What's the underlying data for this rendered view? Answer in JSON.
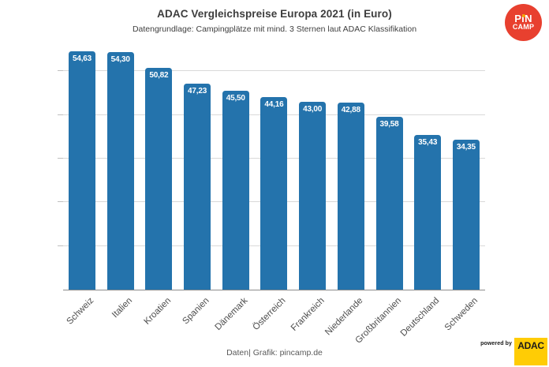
{
  "header": {
    "title": "ADAC Vergleichspreise Europa 2021 (in Euro)",
    "subtitle": "Datengrundlage: Campingplätze mit mind. 3 Sternen laut ADAC Klassifikation"
  },
  "chart_data": {
    "type": "bar",
    "title": "ADAC Vergleichspreise Europa 2021 (in Euro)",
    "subtitle": "Datengrundlage: Campingplätze mit mind. 3 Sternen laut ADAC Klassifikation",
    "categories": [
      "Schweiz",
      "Italien",
      "Kroatien",
      "Spanien",
      "Dänemark",
      "Österreich",
      "Frankreich",
      "Niederlande",
      "Großbritannien",
      "Deutschland",
      "Schweden"
    ],
    "values": [
      54.63,
      54.3,
      50.82,
      47.23,
      45.5,
      44.16,
      43.0,
      42.88,
      39.58,
      35.43,
      34.35
    ],
    "value_labels": [
      "54,63",
      "54,30",
      "50,82",
      "47,23",
      "45,50",
      "44,16",
      "43,00",
      "42,88",
      "39,58",
      "35,43",
      "34,35"
    ],
    "xlabel": "",
    "ylabel": "",
    "ylim": [
      0,
      56
    ],
    "gridline_values": [
      10,
      20,
      30,
      40,
      50
    ],
    "grid": "horizontal",
    "legend": "none",
    "bar_color": "#2473ac",
    "value_label_color": "#ffffff"
  },
  "footer": {
    "credit": "Daten| Grafik: pincamp.de"
  },
  "logos": {
    "pincamp": {
      "line1": "PiN",
      "line2": "CAMP",
      "circle_color": "#e8402f",
      "dot_color": "#f6a800"
    },
    "adac": {
      "powered_by": "powered by",
      "label": "ADAC",
      "box_color": "#ffcc05"
    }
  }
}
